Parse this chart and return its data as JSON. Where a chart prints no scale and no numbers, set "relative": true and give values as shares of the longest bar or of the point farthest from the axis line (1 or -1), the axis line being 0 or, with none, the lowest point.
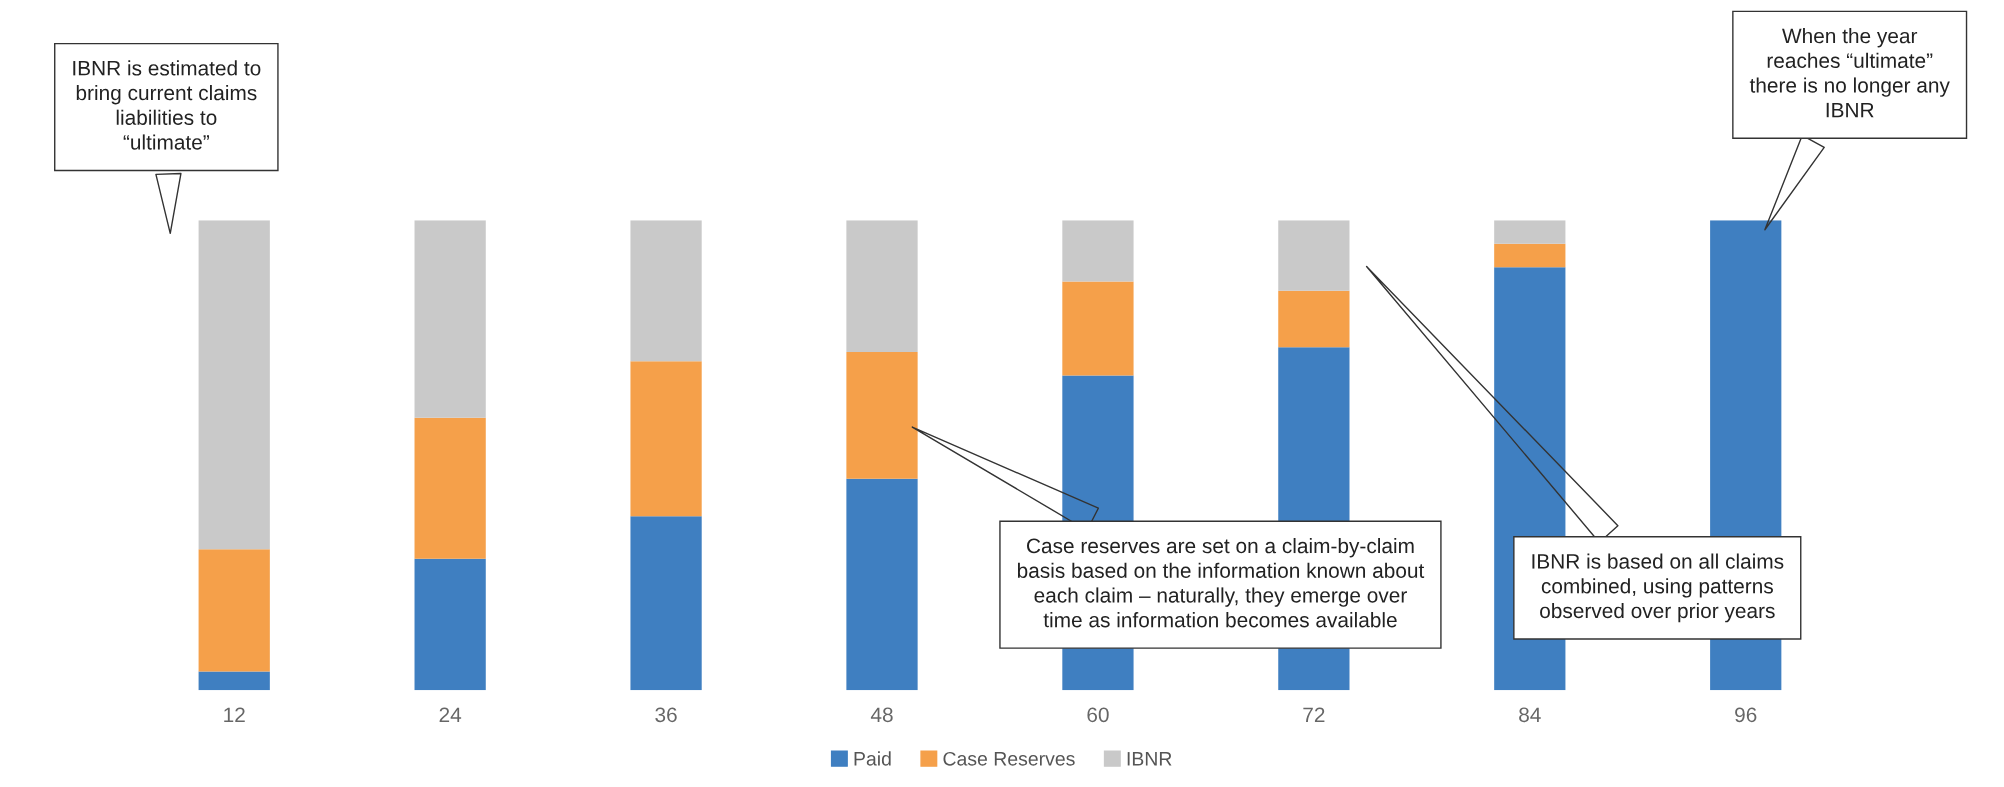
{
  "chart_data": {
    "type": "bar",
    "stacked": true,
    "relative": true,
    "categories": [
      "12",
      "24",
      "36",
      "48",
      "60",
      "72",
      "84",
      "96"
    ],
    "series": [
      {
        "name": "Paid",
        "color": "#3f7fc1",
        "values": [
          0.04,
          0.28,
          0.37,
          0.45,
          0.67,
          0.73,
          0.9,
          1.0
        ]
      },
      {
        "name": "Case Reserves",
        "color": "#f5a04a",
        "values": [
          0.26,
          0.3,
          0.33,
          0.27,
          0.2,
          0.12,
          0.05,
          0
        ]
      },
      {
        "name": "IBNR",
        "color": "#c9c9c9",
        "values": [
          0.7,
          0.42,
          0.3,
          0.28,
          0.13,
          0.15,
          0.05,
          0
        ]
      }
    ],
    "legend": "bottom",
    "annotations": [
      "IBNR is estimated to\nbring current claims\nliabilities to\n“ultimate”",
      "Case reserves are set on a claim-by-claim\nbasis based on the information known about\neach claim – naturally, they emerge over\ntime as information becomes available",
      "IBNR is based on all claims\ncombined, using patterns\nobserved over prior years",
      "When the year\nreaches “ultimate”\nthere is no longer any\nIBNR"
    ]
  }
}
